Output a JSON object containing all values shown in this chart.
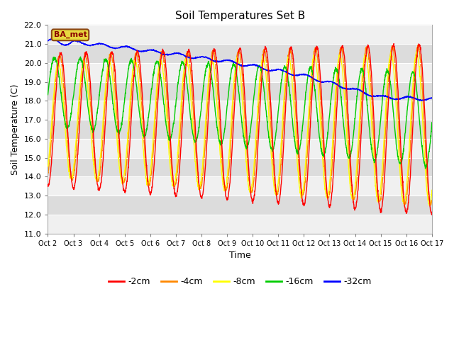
{
  "title": "Soil Temperatures Set B",
  "xlabel": "Time",
  "ylabel": "Soil Temperature (C)",
  "ylim": [
    11.0,
    22.0
  ],
  "yticks": [
    11.0,
    12.0,
    13.0,
    14.0,
    15.0,
    16.0,
    17.0,
    18.0,
    19.0,
    20.0,
    21.0,
    22.0
  ],
  "xtick_labels": [
    "Oct 2",
    "Oct 3",
    "Oct 4",
    "Oct 5",
    "Oct 6",
    "Oct 7",
    "Oct 8",
    "Oct 9",
    "Oct 10",
    "Oct 11",
    "Oct 12",
    "Oct 13",
    "Oct 14",
    "Oct 15",
    "Oct 16",
    "Oct 17"
  ],
  "legend_label": "BA_met",
  "series_labels": [
    "-2cm",
    "-4cm",
    "-8cm",
    "-16cm",
    "-32cm"
  ],
  "series_colors": [
    "#ff0000",
    "#ff8800",
    "#ffff00",
    "#00cc00",
    "#0000ff"
  ],
  "bg_light": "#f0f0f0",
  "bg_dark": "#dcdcdc",
  "title_fontsize": 11,
  "label_fontsize": 9,
  "tick_fontsize": 8,
  "days": 15,
  "n_points": 2000
}
